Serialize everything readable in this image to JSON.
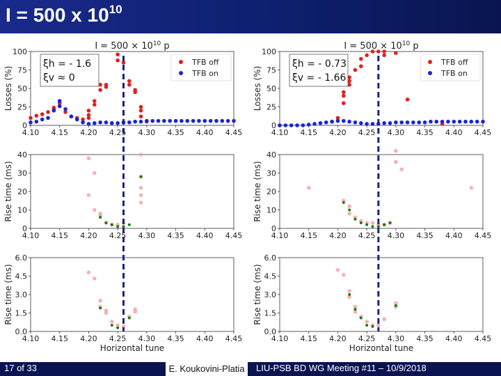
{
  "slide": {
    "title": "I = 500 x 10",
    "title_sup": "10",
    "footer": {
      "page": "17 of 33",
      "author": "E. Koukovini-Platia",
      "meeting": "LIU-PSB BD WG Meeting #11 – 10/9/2018"
    }
  },
  "colors": {
    "tfb_off": "#dd2222",
    "tfb_on": "#1a24d6",
    "rise_light": "#f4a6a6",
    "rise_dark": "#1a7a1a",
    "marker_line": "#1a237e",
    "title_bg": "#13237a"
  },
  "chart_data": [
    {
      "id": "losses-left",
      "type": "scatter",
      "title": "I = 500 × 10",
      "title_sup": "10",
      "title_suffix": "p",
      "ylabel": "Losses (%)",
      "xlabel": "",
      "xlim": [
        4.1,
        4.45
      ],
      "ylim": [
        0,
        100
      ],
      "xticks": [
        "4.10",
        "4.15",
        "4.20",
        "4.25",
        "4.30",
        "4.35",
        "4.40",
        "4.45"
      ],
      "yticks": [
        "0",
        "25",
        "50",
        "75",
        "100"
      ],
      "annotation": [
        "ξh = - 1.6",
        "ξv ≈ 0"
      ],
      "legend": {
        "position": "top-right",
        "entries": [
          "TFB off",
          "TFB on"
        ]
      },
      "marker_x": 4.26,
      "series": [
        {
          "name": "TFB off",
          "points": [
            [
              4.1,
              10
            ],
            [
              4.11,
              13
            ],
            [
              4.12,
              15
            ],
            [
              4.13,
              18
            ],
            [
              4.14,
              22
            ],
            [
              4.14,
              24
            ],
            [
              4.15,
              26
            ],
            [
              4.15,
              30
            ],
            [
              4.16,
              18
            ],
            [
              4.17,
              12
            ],
            [
              4.18,
              10
            ],
            [
              4.19,
              8
            ],
            [
              4.2,
              10
            ],
            [
              4.2,
              14
            ],
            [
              4.2,
              20
            ],
            [
              4.21,
              28
            ],
            [
              4.21,
              33
            ],
            [
              4.22,
              48
            ],
            [
              4.22,
              55
            ],
            [
              4.23,
              52
            ],
            [
              4.23,
              55
            ],
            [
              4.24,
              3
            ],
            [
              4.25,
              96
            ],
            [
              4.25,
              88
            ],
            [
              4.26,
              85
            ],
            [
              4.27,
              60
            ],
            [
              4.27,
              55
            ],
            [
              4.28,
              48
            ],
            [
              4.28,
              45
            ],
            [
              4.29,
              25
            ],
            [
              4.29,
              20
            ],
            [
              4.29,
              12
            ],
            [
              4.3,
              5
            ]
          ]
        },
        {
          "name": "TFB on",
          "points": [
            [
              4.1,
              4
            ],
            [
              4.11,
              5
            ],
            [
              4.12,
              8
            ],
            [
              4.13,
              10
            ],
            [
              4.14,
              20
            ],
            [
              4.15,
              26
            ],
            [
              4.15,
              33
            ],
            [
              4.16,
              22
            ],
            [
              4.17,
              12
            ],
            [
              4.18,
              8
            ],
            [
              4.19,
              4
            ],
            [
              4.2,
              2
            ],
            [
              4.21,
              3
            ],
            [
              4.22,
              4
            ],
            [
              4.23,
              4
            ],
            [
              4.24,
              3
            ],
            [
              4.25,
              3
            ],
            [
              4.26,
              4
            ],
            [
              4.27,
              4
            ],
            [
              4.28,
              5
            ],
            [
              4.29,
              5
            ],
            [
              4.3,
              6
            ],
            [
              4.31,
              6
            ],
            [
              4.32,
              6
            ],
            [
              4.33,
              6
            ],
            [
              4.34,
              6
            ],
            [
              4.35,
              6
            ],
            [
              4.36,
              6
            ],
            [
              4.37,
              6
            ],
            [
              4.38,
              6
            ],
            [
              4.39,
              6
            ],
            [
              4.4,
              6
            ],
            [
              4.41,
              6
            ],
            [
              4.42,
              6
            ],
            [
              4.43,
              6
            ],
            [
              4.44,
              6
            ],
            [
              4.45,
              6
            ]
          ]
        }
      ]
    },
    {
      "id": "losses-right",
      "type": "scatter",
      "title": "I = 500 × 10",
      "title_sup": "10",
      "title_suffix": "p",
      "ylabel": "Losses (%)",
      "xlabel": "",
      "xlim": [
        4.1,
        4.45
      ],
      "ylim": [
        0,
        100
      ],
      "xticks": [
        "4.10",
        "4.15",
        "4.20",
        "4.25",
        "4.30",
        "4.35",
        "4.40",
        "4.45"
      ],
      "yticks": [
        "0",
        "25",
        "50",
        "75",
        "100"
      ],
      "annotation": [
        "ξh = - 0.73",
        "ξv = - 1.66"
      ],
      "legend": {
        "position": "top-right",
        "entries": [
          "TFB off",
          "TFB on"
        ]
      },
      "marker_x": 4.27,
      "series": [
        {
          "name": "TFB off",
          "points": [
            [
              4.19,
              5
            ],
            [
              4.2,
              10
            ],
            [
              4.21,
              30
            ],
            [
              4.21,
              40
            ],
            [
              4.21,
              45
            ],
            [
              4.22,
              55
            ],
            [
              4.22,
              60
            ],
            [
              4.22,
              65
            ],
            [
              4.23,
              75
            ],
            [
              4.24,
              80
            ],
            [
              4.24,
              90
            ],
            [
              4.25,
              95
            ],
            [
              4.26,
              100
            ],
            [
              4.27,
              100
            ],
            [
              4.28,
              100
            ],
            [
              4.28,
              95
            ],
            [
              4.3,
              98
            ],
            [
              4.32,
              35
            ],
            [
              4.38,
              2
            ]
          ]
        },
        {
          "name": "TFB on",
          "points": [
            [
              4.1,
              0
            ],
            [
              4.11,
              0
            ],
            [
              4.12,
              0
            ],
            [
              4.13,
              0
            ],
            [
              4.14,
              0
            ],
            [
              4.15,
              1
            ],
            [
              4.16,
              2
            ],
            [
              4.17,
              3
            ],
            [
              4.18,
              4
            ],
            [
              4.19,
              5
            ],
            [
              4.2,
              6
            ],
            [
              4.21,
              6
            ],
            [
              4.22,
              5
            ],
            [
              4.23,
              4
            ],
            [
              4.24,
              3
            ],
            [
              4.25,
              2
            ],
            [
              4.26,
              2
            ],
            [
              4.27,
              2
            ],
            [
              4.28,
              3
            ],
            [
              4.29,
              3
            ],
            [
              4.3,
              4
            ],
            [
              4.31,
              4
            ],
            [
              4.32,
              4
            ],
            [
              4.33,
              4
            ],
            [
              4.34,
              4
            ],
            [
              4.35,
              4
            ],
            [
              4.36,
              5
            ],
            [
              4.37,
              5
            ],
            [
              4.38,
              5
            ],
            [
              4.39,
              5
            ],
            [
              4.4,
              5
            ],
            [
              4.41,
              5
            ],
            [
              4.42,
              5
            ],
            [
              4.43,
              5
            ],
            [
              4.44,
              5
            ],
            [
              4.45,
              5
            ]
          ]
        }
      ]
    },
    {
      "id": "rise-left-1",
      "type": "scatter",
      "ylabel": "Rise time (ms)",
      "xlabel": "",
      "xlim": [
        4.1,
        4.45
      ],
      "ylim": [
        0,
        40
      ],
      "xticks": [
        "4.10",
        "4.15",
        "4.20",
        "4.25",
        "4.30",
        "4.35",
        "4.40",
        "4.45"
      ],
      "yticks": [
        "0",
        "10",
        "20",
        "30",
        "40"
      ],
      "marker_x": 4.26,
      "series": [
        {
          "name": "light",
          "points": [
            [
              4.2,
              38
            ],
            [
              4.21,
              30
            ],
            [
              4.2,
              18
            ],
            [
              4.21,
              10
            ],
            [
              4.22,
              8
            ],
            [
              4.22,
              7
            ],
            [
              4.23,
              3
            ],
            [
              4.24,
              2
            ],
            [
              4.25,
              2
            ],
            [
              4.26,
              3
            ],
            [
              4.29,
              40
            ],
            [
              4.29,
              28
            ],
            [
              4.29,
              22
            ],
            [
              4.29,
              18
            ],
            [
              4.29,
              14
            ]
          ]
        },
        {
          "name": "dark",
          "points": [
            [
              4.22,
              6
            ],
            [
              4.23,
              3
            ],
            [
              4.24,
              2
            ],
            [
              4.25,
              1
            ],
            [
              4.26,
              1
            ],
            [
              4.27,
              2
            ],
            [
              4.29,
              28
            ]
          ]
        }
      ]
    },
    {
      "id": "rise-right-1",
      "type": "scatter",
      "ylabel": "Rise time (ms)",
      "xlabel": "",
      "xlim": [
        4.1,
        4.45
      ],
      "ylim": [
        0,
        40
      ],
      "xticks": [
        "4.10",
        "4.15",
        "4.20",
        "4.25",
        "4.30",
        "4.35",
        "4.40",
        "4.45"
      ],
      "yticks": [
        "0",
        "10",
        "20",
        "30",
        "40"
      ],
      "marker_x": 4.27,
      "series": [
        {
          "name": "light",
          "points": [
            [
              4.15,
              22
            ],
            [
              4.21,
              15
            ],
            [
              4.22,
              12
            ],
            [
              4.22,
              8
            ],
            [
              4.23,
              6
            ],
            [
              4.24,
              4
            ],
            [
              4.25,
              3
            ],
            [
              4.26,
              3
            ],
            [
              4.27,
              2
            ],
            [
              4.28,
              2
            ],
            [
              4.29,
              3
            ],
            [
              4.3,
              42
            ],
            [
              4.3,
              36
            ],
            [
              4.31,
              32
            ],
            [
              4.43,
              22
            ]
          ]
        },
        {
          "name": "dark",
          "points": [
            [
              4.21,
              14
            ],
            [
              4.22,
              10
            ],
            [
              4.23,
              5
            ],
            [
              4.24,
              3
            ],
            [
              4.25,
              2
            ],
            [
              4.26,
              1
            ],
            [
              4.27,
              1
            ],
            [
              4.28,
              2
            ],
            [
              4.29,
              3
            ]
          ]
        }
      ]
    },
    {
      "id": "rise-left-2",
      "type": "scatter",
      "ylabel": "Rise time (ms)",
      "xlabel": "Horizontal tune",
      "xlim": [
        4.1,
        4.45
      ],
      "ylim": [
        0,
        6.0
      ],
      "xticks": [
        "4.10",
        "4.15",
        "4.20",
        "4.25",
        "4.30",
        "4.35",
        "4.40",
        "4.45"
      ],
      "yticks": [
        "0.0",
        "1.5",
        "3.0",
        "4.5",
        "6.0"
      ],
      "marker_x": 4.26,
      "series": [
        {
          "name": "light",
          "points": [
            [
              4.2,
              4.8
            ],
            [
              4.21,
              4.3
            ],
            [
              4.22,
              2.5
            ],
            [
              4.22,
              2.0
            ],
            [
              4.23,
              1.7
            ],
            [
              4.23,
              1.5
            ],
            [
              4.24,
              0.8
            ],
            [
              4.25,
              0.5
            ],
            [
              4.26,
              0.4
            ],
            [
              4.27,
              1.2
            ],
            [
              4.28,
              1.6
            ],
            [
              4.28,
              1.8
            ]
          ]
        },
        {
          "name": "dark",
          "points": [
            [
              4.22,
              1.9
            ],
            [
              4.24,
              0.5
            ],
            [
              4.25,
              0.3
            ],
            [
              4.27,
              1.1
            ]
          ]
        }
      ]
    },
    {
      "id": "rise-right-2",
      "type": "scatter",
      "ylabel": "Rise time (ms)",
      "xlabel": "Horizontal tune",
      "xlim": [
        4.1,
        4.45
      ],
      "ylim": [
        0,
        6.0
      ],
      "xticks": [
        "4.10",
        "4.15",
        "4.20",
        "4.25",
        "4.30",
        "4.35",
        "4.40",
        "4.45"
      ],
      "yticks": [
        "0.0",
        "1.5",
        "3.0",
        "4.5",
        "6.0"
      ],
      "marker_x": 4.27,
      "series": [
        {
          "name": "light",
          "points": [
            [
              4.2,
              5.0
            ],
            [
              4.21,
              4.6
            ],
            [
              4.22,
              3.3
            ],
            [
              4.22,
              2.8
            ],
            [
              4.23,
              2.0
            ],
            [
              4.23,
              1.6
            ],
            [
              4.24,
              1.2
            ],
            [
              4.25,
              0.8
            ],
            [
              4.26,
              0.5
            ],
            [
              4.27,
              0.5
            ],
            [
              4.28,
              1.0
            ],
            [
              4.3,
              2.3
            ],
            [
              4.3,
              2.0
            ]
          ]
        },
        {
          "name": "dark",
          "points": [
            [
              4.22,
              3.0
            ],
            [
              4.23,
              1.8
            ],
            [
              4.24,
              1.1
            ],
            [
              4.25,
              0.5
            ],
            [
              4.26,
              0.4
            ],
            [
              4.3,
              2.1
            ]
          ]
        }
      ]
    }
  ]
}
